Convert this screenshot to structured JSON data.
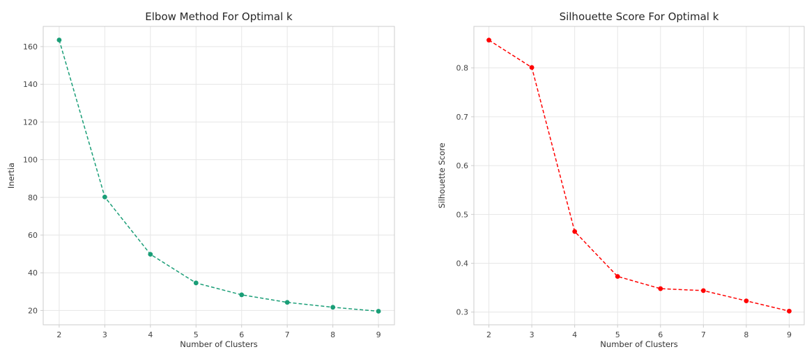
{
  "chart_data": [
    {
      "type": "line",
      "title": "Elbow Method For Optimal k",
      "xlabel": "Number of Clusters",
      "ylabel": "Inertia",
      "x": [
        2,
        3,
        4,
        5,
        6,
        7,
        8,
        9
      ],
      "y": [
        163.5,
        80.2,
        49.8,
        34.6,
        28.3,
        24.3,
        21.7,
        19.6
      ],
      "xticks": [
        2,
        3,
        4,
        5,
        6,
        7,
        8,
        9
      ],
      "yticks": [
        20,
        40,
        60,
        80,
        100,
        120,
        140,
        160
      ],
      "xlim": [
        1.65,
        9.35
      ],
      "ylim": [
        12.4,
        170.7
      ],
      "grid": true,
      "line_style": "dashed",
      "marker": "circle",
      "color": "#1a9e77"
    },
    {
      "type": "line",
      "title": "Silhouette Score For Optimal k",
      "xlabel": "Number of Clusters",
      "ylabel": "Silhouette Score",
      "x": [
        2,
        3,
        4,
        5,
        6,
        7,
        8,
        9
      ],
      "y": [
        0.857,
        0.801,
        0.465,
        0.373,
        0.348,
        0.344,
        0.323,
        0.302
      ],
      "xticks": [
        2,
        3,
        4,
        5,
        6,
        7,
        8,
        9
      ],
      "yticks": [
        0.3,
        0.4,
        0.5,
        0.6,
        0.7,
        0.8
      ],
      "xlim": [
        1.65,
        9.35
      ],
      "ylim": [
        0.274,
        0.885
      ],
      "grid": true,
      "line_style": "dashed",
      "marker": "circle",
      "color": "#ff0000"
    }
  ]
}
